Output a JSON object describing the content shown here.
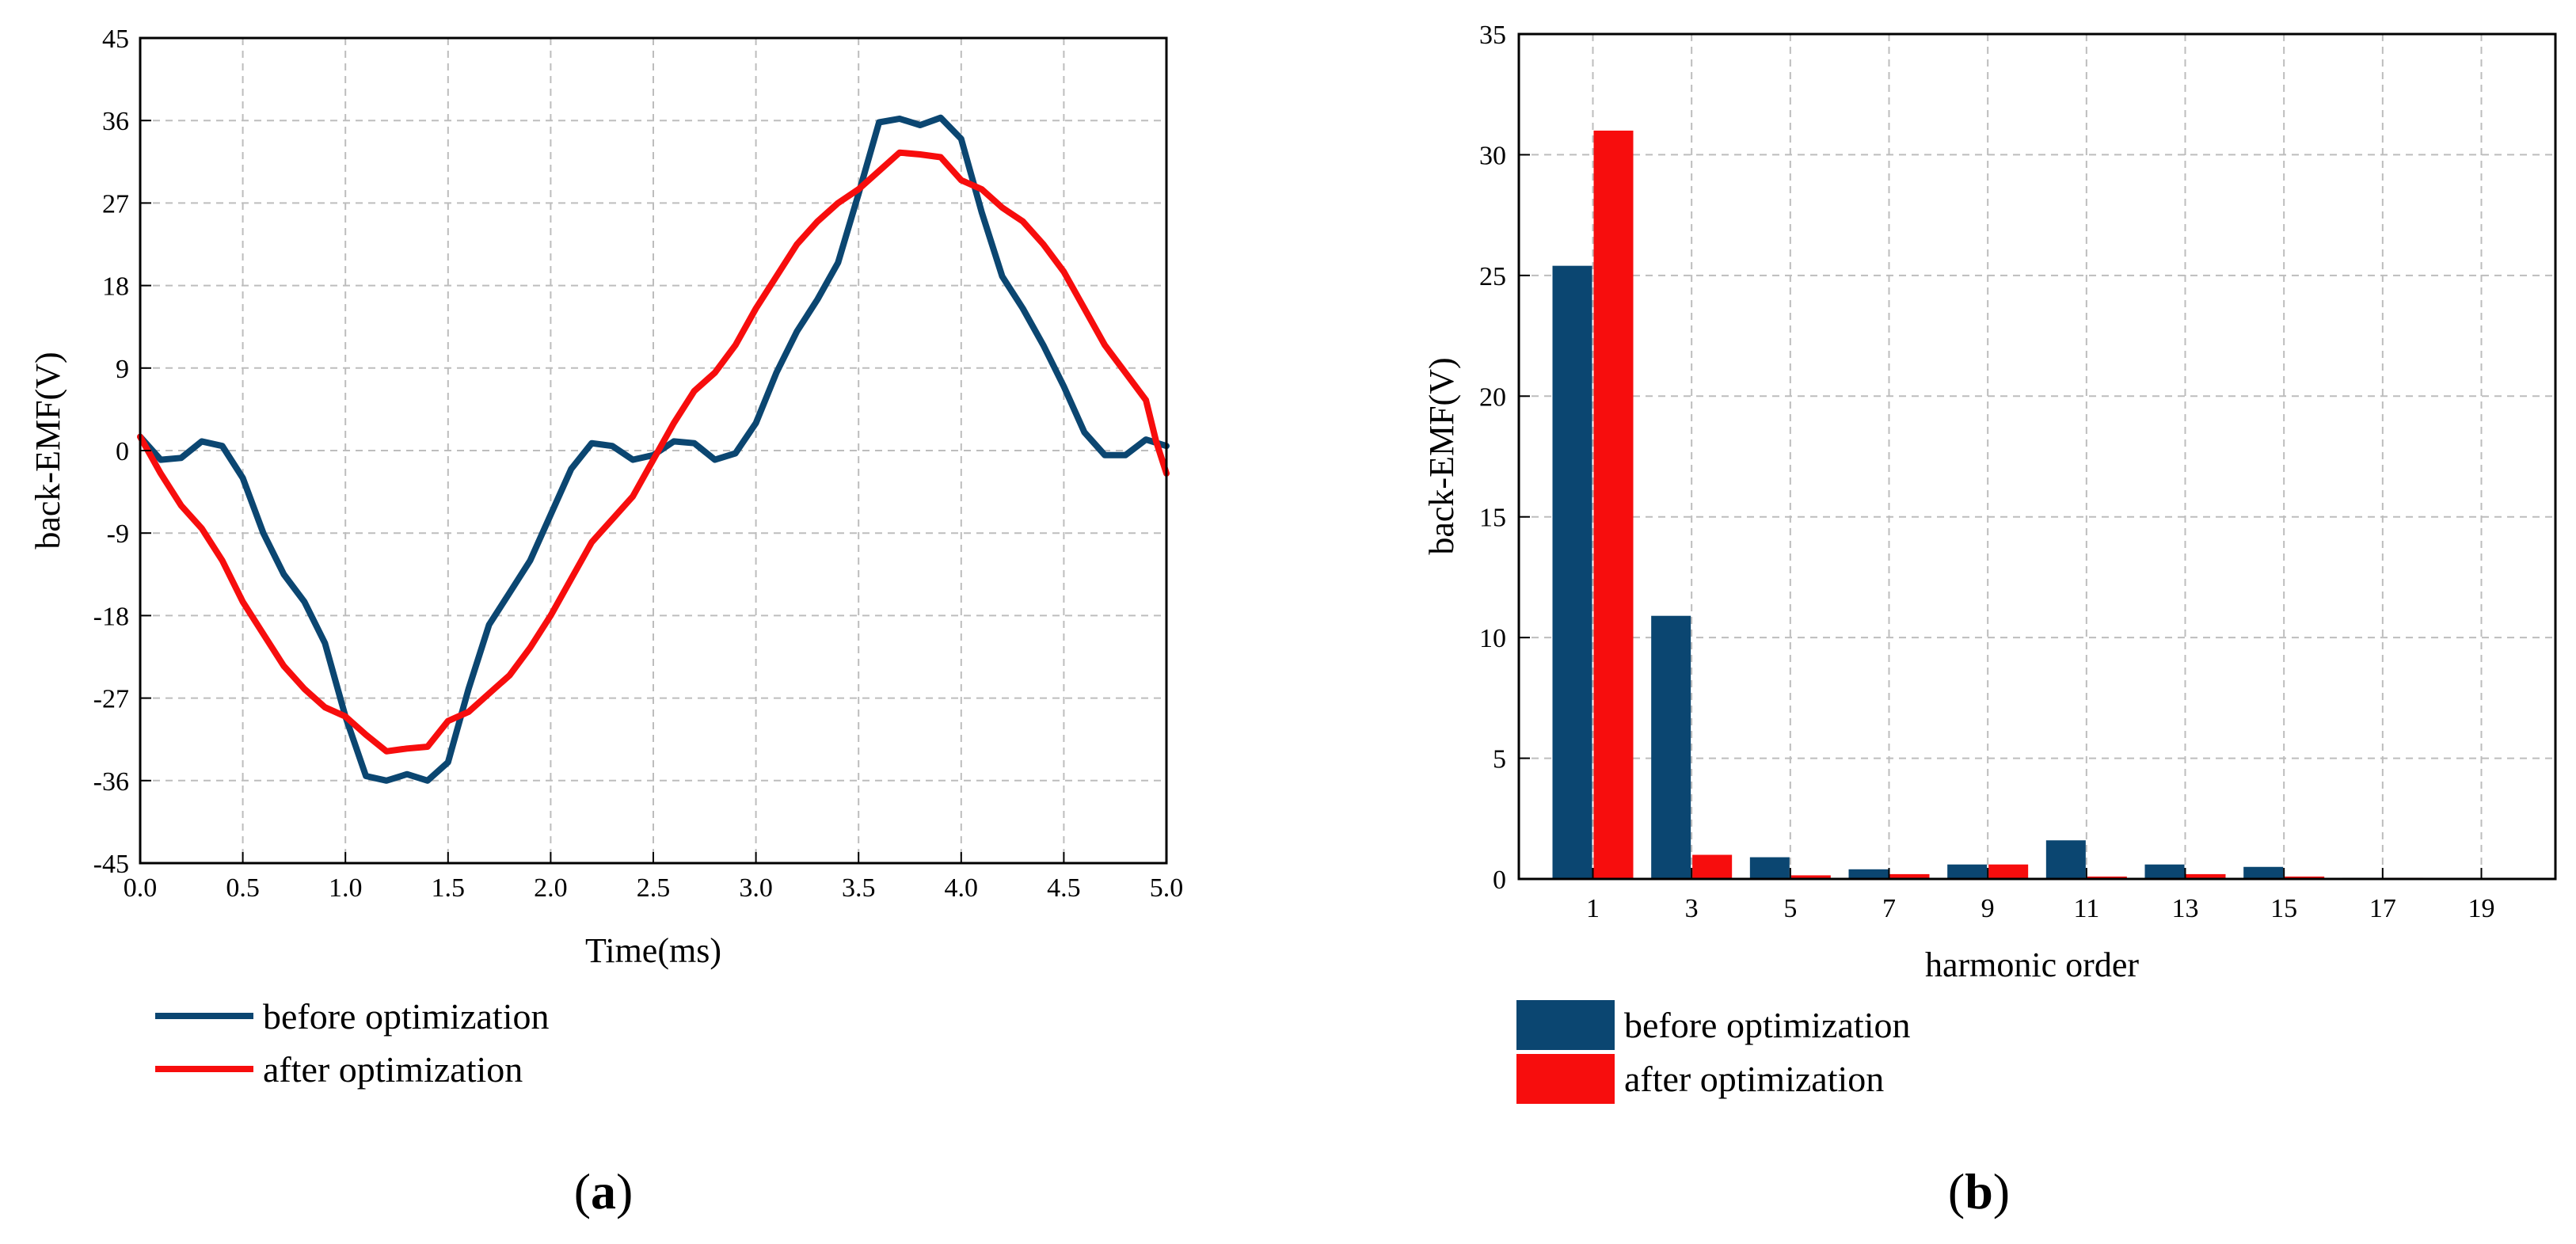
{
  "colors": {
    "before": "#0B4671",
    "after": "#F70D0D",
    "grid": "#BDBDBD",
    "axis": "#000000"
  },
  "chart_data": [
    {
      "type": "line",
      "panel_label": "(a)",
      "panel_letter": "a",
      "xlabel": "Time(ms)",
      "ylabel": "back-EMF(V)",
      "xlim": [
        0,
        5
      ],
      "ylim": [
        -45,
        45
      ],
      "xticks": [
        0,
        0.5,
        1,
        1.5,
        2,
        2.5,
        3,
        3.5,
        4,
        4.5,
        5
      ],
      "xtick_labels": [
        "0.0",
        "0.5",
        "1.0",
        "1.5",
        "2.0",
        "2.5",
        "3.0",
        "3.5",
        "4.0",
        "4.5",
        "5.0"
      ],
      "yticks": [
        -45,
        -36,
        -27,
        -18,
        -9,
        0,
        9,
        18,
        27,
        36,
        45
      ],
      "ytick_labels": [
        "-45",
        "-36",
        "-27",
        "-18",
        "-9",
        "0",
        "9",
        "18",
        "27",
        "36",
        "45"
      ],
      "grid": true,
      "legend_position": "bottom",
      "series": [
        {
          "name": "before optimization",
          "x": [
            0,
            0.1,
            0.2,
            0.3,
            0.4,
            0.5,
            0.6,
            0.7,
            0.8,
            0.9,
            1.0,
            1.1,
            1.2,
            1.3,
            1.4,
            1.5,
            1.6,
            1.7,
            1.8,
            1.9,
            2.0,
            2.1,
            2.2,
            2.3,
            2.4,
            2.5,
            2.6,
            2.7,
            2.8,
            2.9,
            3.0,
            3.1,
            3.2,
            3.3,
            3.4,
            3.5,
            3.6,
            3.7,
            3.8,
            3.9,
            4.0,
            4.1,
            4.2,
            4.3,
            4.4,
            4.5,
            4.6,
            4.7,
            4.8,
            4.9,
            5.0
          ],
          "y": [
            1.5,
            -1.0,
            -0.8,
            1.0,
            0.5,
            -3.0,
            -9.0,
            -13.5,
            -16.5,
            -21.0,
            -29.0,
            -35.5,
            -36.0,
            -35.3,
            -36.0,
            -34.0,
            -26.0,
            -19.0,
            -15.5,
            -12.0,
            -7.0,
            -2.0,
            0.8,
            0.5,
            -1.0,
            -0.5,
            1.0,
            0.8,
            -1.0,
            -0.3,
            3.0,
            8.5,
            13.0,
            16.5,
            20.5,
            28.0,
            35.8,
            36.2,
            35.5,
            36.3,
            34.0,
            26.0,
            19.0,
            15.5,
            11.5,
            7.0,
            2.0,
            -0.5,
            -0.5,
            1.2,
            0.5
          ]
        },
        {
          "name": "after optimization",
          "x": [
            0,
            0.1,
            0.2,
            0.3,
            0.4,
            0.5,
            0.6,
            0.7,
            0.8,
            0.9,
            1.0,
            1.1,
            1.2,
            1.3,
            1.4,
            1.5,
            1.6,
            1.7,
            1.8,
            1.9,
            2.0,
            2.1,
            2.2,
            2.3,
            2.4,
            2.5,
            2.6,
            2.7,
            2.8,
            2.9,
            3.0,
            3.1,
            3.2,
            3.3,
            3.4,
            3.5,
            3.6,
            3.7,
            3.8,
            3.9,
            4.0,
            4.1,
            4.2,
            4.3,
            4.4,
            4.5,
            4.6,
            4.7,
            4.8,
            4.9,
            4.95,
            5.0
          ],
          "y": [
            1.5,
            -2.5,
            -6.0,
            -8.5,
            -12.0,
            -16.5,
            -20.0,
            -23.5,
            -26.0,
            -28.0,
            -29.0,
            -31.0,
            -32.8,
            -32.5,
            -32.3,
            -29.5,
            -28.5,
            -26.5,
            -24.5,
            -21.5,
            -18.0,
            -14.0,
            -10.0,
            -7.5,
            -5.0,
            -1.0,
            3.0,
            6.5,
            8.5,
            11.5,
            15.5,
            19.0,
            22.5,
            25.0,
            27.0,
            28.5,
            30.5,
            32.5,
            32.3,
            32.0,
            29.5,
            28.5,
            26.5,
            25.0,
            22.5,
            19.5,
            15.5,
            11.5,
            8.5,
            5.5,
            1.0,
            -2.5
          ]
        }
      ]
    },
    {
      "type": "bar",
      "panel_label": "(b)",
      "panel_letter": "b",
      "xlabel": "harmonic order",
      "ylabel": "back-EMF(V)",
      "ylim": [
        0,
        35
      ],
      "yticks": [
        0,
        5,
        10,
        15,
        20,
        25,
        30,
        35
      ],
      "ytick_labels": [
        "0",
        "5",
        "10",
        "15",
        "20",
        "25",
        "30",
        "35"
      ],
      "categories": [
        "1",
        "3",
        "5",
        "7",
        "9",
        "11",
        "13",
        "15",
        "17",
        "19"
      ],
      "grid": true,
      "legend_position": "bottom",
      "series": [
        {
          "name": "before optimization",
          "values": [
            25.4,
            10.9,
            0.9,
            0.4,
            0.6,
            1.6,
            0.6,
            0.5,
            0.05,
            0.02
          ]
        },
        {
          "name": "after optimization",
          "values": [
            31.0,
            1.0,
            0.15,
            0.2,
            0.6,
            0.1,
            0.2,
            0.1,
            0.05,
            0.02
          ]
        }
      ]
    }
  ]
}
